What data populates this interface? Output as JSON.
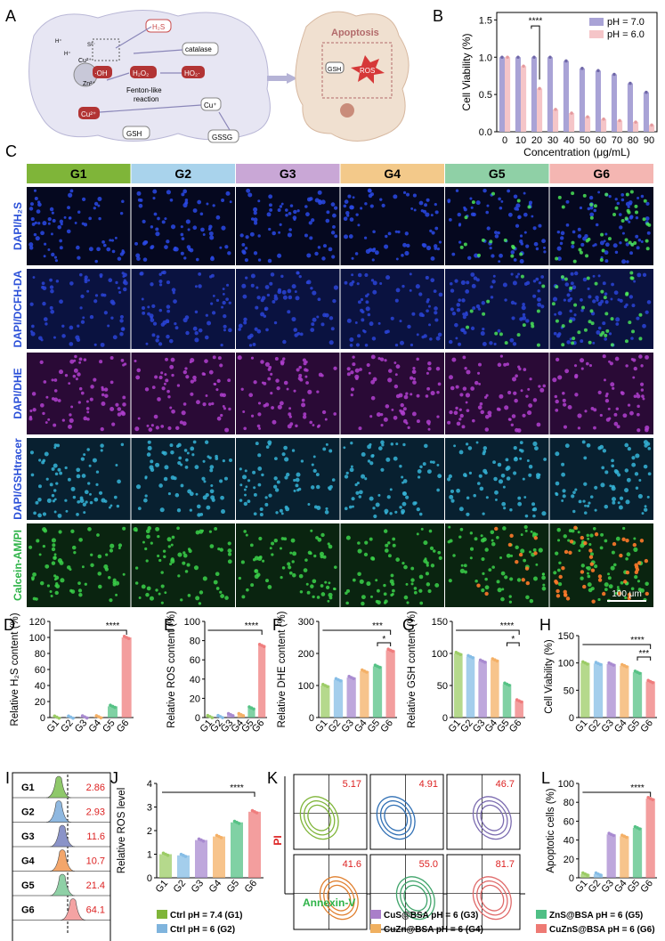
{
  "panel_letters": [
    "A",
    "B",
    "C",
    "D",
    "E",
    "F",
    "G",
    "H",
    "I",
    "J",
    "K",
    "L"
  ],
  "schematic": {
    "labels": [
      "H₂S",
      "catalase",
      "Cu²⁺",
      "Zn²⁺",
      "H₂O₂",
      "·OH",
      "HO₂·",
      "Fenton-like",
      "reaction",
      "Cu²⁺",
      "Cu⁺",
      "GSH",
      "GSSG",
      "Apoptosis",
      "GSH",
      "ROS",
      "S²⁻",
      "H⁺",
      "H⁺"
    ]
  },
  "group_labels": [
    "G1",
    "G2",
    "G3",
    "G4",
    "G5",
    "G6"
  ],
  "group_colors": [
    "#7fb539",
    "#a9d3ec",
    "#c9a7d6",
    "#f3c98a",
    "#8fd0a6",
    "#f4b6b2"
  ],
  "row_labels": [
    "DAPI/H₂S",
    "DAPI/DCFH-DA",
    "DAPI/DHE",
    "DAPI/GSHtracer",
    "Calcein-AM/PI"
  ],
  "scale_bar": "100 μm",
  "flow_K": {
    "values": [
      "5.17",
      "4.91",
      "46.7",
      "41.6",
      "55.0",
      "81.7"
    ],
    "xlabel": "Annexin-V",
    "ylabel": "PI",
    "colors": [
      "#7fb539",
      "#2f6fb4",
      "#7b6bb0",
      "#e07f2e",
      "#3fa46a",
      "#e06a6a"
    ]
  },
  "histo_I": {
    "groups": [
      "G1",
      "G2",
      "G3",
      "G4",
      "G5",
      "G6"
    ],
    "values": [
      "2.86",
      "2.93",
      "11.6",
      "10.7",
      "21.4",
      "64.1"
    ],
    "colors": [
      "#8fc86a",
      "#8fb8e0",
      "#8a93c8",
      "#f3a66b",
      "#8fd0a6",
      "#f4a3a3"
    ]
  },
  "legend": {
    "items": [
      "Ctrl pH = 7.4 (G1)",
      "Ctrl pH = 6 (G2)",
      "CuS@BSA pH = 6 (G3)",
      "CuZn@BSA pH = 6 (G4)",
      "ZnS@BSA pH = 6 (G5)",
      "CuZnS@BSA pH = 6 (G6)"
    ],
    "colors": [
      "#7fb539",
      "#7fb4dd",
      "#a97ec9",
      "#f0b060",
      "#4fbf85",
      "#ee7a74"
    ]
  },
  "chart_data": [
    {
      "id": "B",
      "type": "bar",
      "xlabel": "Concentration (μg/mL)",
      "ylabel": "Cell Viability (%)",
      "categories": [
        "0",
        "10",
        "20",
        "30",
        "40",
        "50",
        "60",
        "70",
        "80",
        "90"
      ],
      "ylim": [
        0,
        1.6
      ],
      "yticks": [
        "0.0",
        "0.5",
        "1.0",
        "1.5"
      ],
      "series": [
        {
          "name": "pH = 7.0",
          "color": "#a9a3d6",
          "values": [
            1.0,
            1.0,
            1.0,
            1.0,
            0.95,
            0.85,
            0.82,
            0.77,
            0.65,
            0.53
          ]
        },
        {
          "name": "pH = 6.0",
          "color": "#f5c5c8",
          "values": [
            1.0,
            0.88,
            0.58,
            0.3,
            0.25,
            0.2,
            0.17,
            0.15,
            0.13,
            0.09
          ]
        }
      ],
      "significance": "****",
      "legend": "top-right"
    },
    {
      "id": "D",
      "type": "bar",
      "ylabel": "Relative H₂S content (%)",
      "categories": [
        "G1",
        "G2",
        "G3",
        "G4",
        "G5",
        "G6"
      ],
      "values": [
        0.5,
        0.5,
        0.8,
        1,
        14,
        100
      ],
      "ylim": [
        0,
        120
      ],
      "yticks": [
        "0",
        "20",
        "40",
        "60",
        "80",
        "100",
        "120"
      ],
      "significance": [
        "****"
      ]
    },
    {
      "id": "E",
      "type": "bar",
      "ylabel": "Relative ROS content (%)",
      "categories": [
        "G1",
        "G2",
        "G3",
        "G4",
        "G5",
        "G6"
      ],
      "values": [
        1,
        1,
        3,
        3,
        10,
        75
      ],
      "ylim": [
        0,
        100
      ],
      "yticks": [
        "0",
        "20",
        "40",
        "60",
        "80",
        "100"
      ],
      "significance": [
        "****"
      ]
    },
    {
      "id": "F",
      "type": "bar",
      "ylabel": "Relative DHE content (%)",
      "categories": [
        "G1",
        "G2",
        "G3",
        "G4",
        "G5",
        "G6"
      ],
      "values": [
        100,
        118,
        125,
        145,
        160,
        210
      ],
      "ylim": [
        0,
        300
      ],
      "yticks": [
        "0",
        "100",
        "200",
        "300"
      ],
      "significance": [
        "***",
        "*"
      ]
    },
    {
      "id": "G",
      "type": "bar",
      "ylabel": "Relative GSH content (%)",
      "categories": [
        "G1",
        "G2",
        "G3",
        "G4",
        "G5",
        "G6"
      ],
      "values": [
        100,
        95,
        88,
        90,
        52,
        26
      ],
      "ylim": [
        0,
        150
      ],
      "yticks": [
        "0",
        "50",
        "100",
        "150"
      ],
      "significance": [
        "****",
        "*"
      ]
    },
    {
      "id": "H",
      "type": "bar",
      "ylabel": "Cell Viability (%)",
      "categories": [
        "G1",
        "G2",
        "G3",
        "G4",
        "G5",
        "G6"
      ],
      "values": [
        100,
        99,
        98,
        95,
        83,
        66
      ],
      "ylim": [
        0,
        150
      ],
      "yticks": [
        "0",
        "50",
        "100",
        "150"
      ],
      "significance": [
        "****",
        "***"
      ]
    },
    {
      "id": "J",
      "type": "bar",
      "ylabel": "Relative ROS level",
      "categories": [
        "G1",
        "G2",
        "G3",
        "G4",
        "G5",
        "G6"
      ],
      "values": [
        1.0,
        0.95,
        1.6,
        1.75,
        2.35,
        2.8
      ],
      "ylim": [
        0,
        4
      ],
      "yticks": [
        "0",
        "1",
        "2",
        "3",
        "4"
      ],
      "significance": [
        "****"
      ]
    },
    {
      "id": "L",
      "type": "bar",
      "ylabel": "Apoptotic cells (%)",
      "categories": [
        "G1",
        "G2",
        "G3",
        "G4",
        "G5",
        "G6"
      ],
      "values": [
        4,
        4,
        46,
        44,
        53,
        84
      ],
      "ylim": [
        0,
        100
      ],
      "yticks": [
        "0",
        "20",
        "40",
        "60",
        "80",
        "100"
      ],
      "significance": [
        "****"
      ]
    }
  ]
}
